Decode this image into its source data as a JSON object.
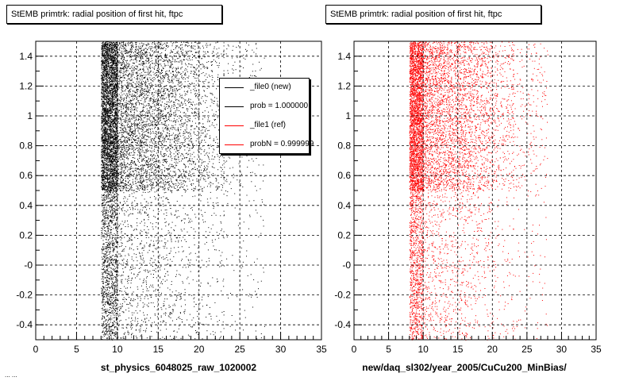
{
  "colors": {
    "file0": "#000000",
    "file1": "#ff0000"
  },
  "footer": "... ...",
  "chart_data": [
    {
      "type": "scatter",
      "title": "StEMB primtrk: radial position of first hit, ftpc",
      "xlabel": "st_physics_6048025_raw_1020002",
      "ylabel": "",
      "xlim": [
        0,
        35
      ],
      "ylim": [
        -0.5,
        1.5
      ],
      "xticks": [
        0,
        5,
        10,
        15,
        20,
        25,
        30,
        35
      ],
      "xtick_labels": [
        "0",
        "5",
        "10",
        "15",
        "20",
        "25",
        "30",
        "35"
      ],
      "yticks": [
        -0.4,
        -0.2,
        0,
        0.2,
        0.4,
        0.6,
        0.8,
        1,
        1.2,
        1.4
      ],
      "ytick_labels": [
        "-0.4",
        "-0.2",
        "-0",
        "0.2",
        "0.4",
        "0.6",
        "0.8",
        "1",
        "1.2",
        "1.4"
      ],
      "grid": true,
      "marker_color": "#000000",
      "distribution": {
        "x_min": 7.5,
        "x_max": 28,
        "x_dense_band": [
          8,
          10
        ],
        "y_dense_band": [
          0.5,
          1.5
        ],
        "n_points": 11000
      },
      "legend": {
        "position": "top-right",
        "entries": [
          {
            "label": "_file0 (new)",
            "color": "#000000"
          },
          {
            "label": "prob = 1.000000",
            "color": "#000000"
          },
          {
            "label": "_file1 (ref)",
            "color": "#ff0000"
          },
          {
            "label": "probN = 0.999999",
            "color": "#ff0000"
          }
        ]
      }
    },
    {
      "type": "scatter",
      "title": "StEMB primtrk: radial position of first hit, ftpc",
      "xlabel": "new/daq_sl302/year_2005/CuCu200_MinBias/",
      "ylabel": "",
      "xlim": [
        0,
        35
      ],
      "ylim": [
        -0.5,
        1.5
      ],
      "xticks": [
        0,
        5,
        10,
        15,
        20,
        25,
        30,
        35
      ],
      "xtick_labels": [
        "0",
        "5",
        "10",
        "15",
        "20",
        "25",
        "30",
        "35"
      ],
      "yticks": [
        -0.4,
        -0.2,
        0,
        0.2,
        0.4,
        0.6,
        0.8,
        1,
        1.2,
        1.4
      ],
      "ytick_labels": [
        "-0.4",
        "-0.2",
        "-0",
        "0.2",
        "0.4",
        "0.6",
        "0.8",
        "1",
        "1.2",
        "1.4"
      ],
      "grid": true,
      "marker_color": "#ff0000",
      "distribution": {
        "x_min": 7.5,
        "x_max": 28,
        "x_dense_band": [
          8,
          10
        ],
        "y_dense_band": [
          0.5,
          1.5
        ],
        "n_points": 9000
      }
    }
  ]
}
